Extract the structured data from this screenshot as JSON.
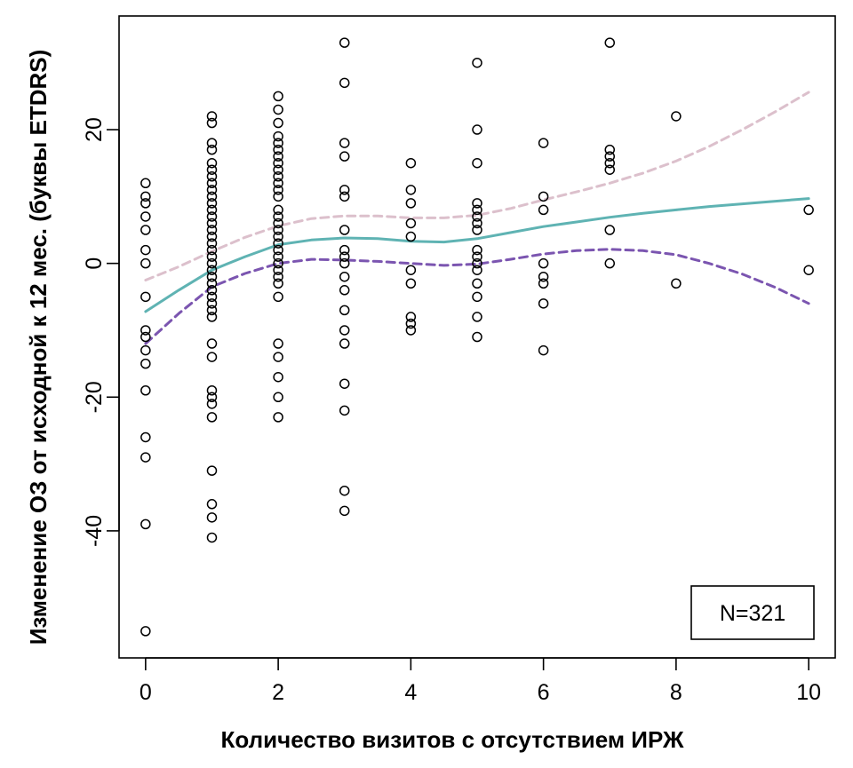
{
  "chart_data": {
    "type": "scatter",
    "title": "",
    "xlabel": "Количество визитов с отсутствием ИРЖ",
    "ylabel": "Изменение ОЗ от исходной к 12 мес. (буквы ETDRS)",
    "xlim": [
      -0.4,
      10.4
    ],
    "ylim": [
      -59,
      37
    ],
    "x_ticks": [
      0,
      2,
      4,
      6,
      8,
      10
    ],
    "y_ticks": [
      -40,
      -20,
      0,
      20
    ],
    "grid": false,
    "annotation": "N=321",
    "annotation_position": "bottom-right",
    "colors": {
      "points": "#000000",
      "fit": "#5fb3b3",
      "upper_ci": "#dcc0cc",
      "lower_ci": "#7b55b0"
    },
    "points": [
      {
        "x": 0,
        "y": 12
      },
      {
        "x": 0,
        "y": 10
      },
      {
        "x": 0,
        "y": 9
      },
      {
        "x": 0,
        "y": 7
      },
      {
        "x": 0,
        "y": 5
      },
      {
        "x": 0,
        "y": 2
      },
      {
        "x": 0,
        "y": 0
      },
      {
        "x": 0,
        "y": -5
      },
      {
        "x": 0,
        "y": -10
      },
      {
        "x": 0,
        "y": -11
      },
      {
        "x": 0,
        "y": -13
      },
      {
        "x": 0,
        "y": -15
      },
      {
        "x": 0,
        "y": -19
      },
      {
        "x": 0,
        "y": -26
      },
      {
        "x": 0,
        "y": -29
      },
      {
        "x": 0,
        "y": -39
      },
      {
        "x": 0,
        "y": -55
      },
      {
        "x": 1,
        "y": 22
      },
      {
        "x": 1,
        "y": 21
      },
      {
        "x": 1,
        "y": 18
      },
      {
        "x": 1,
        "y": 17
      },
      {
        "x": 1,
        "y": 15
      },
      {
        "x": 1,
        "y": 14
      },
      {
        "x": 1,
        "y": 13
      },
      {
        "x": 1,
        "y": 12
      },
      {
        "x": 1,
        "y": 11
      },
      {
        "x": 1,
        "y": 10
      },
      {
        "x": 1,
        "y": 9
      },
      {
        "x": 1,
        "y": 8
      },
      {
        "x": 1,
        "y": 7
      },
      {
        "x": 1,
        "y": 6
      },
      {
        "x": 1,
        "y": 5
      },
      {
        "x": 1,
        "y": 4
      },
      {
        "x": 1,
        "y": 3
      },
      {
        "x": 1,
        "y": 2
      },
      {
        "x": 1,
        "y": 1
      },
      {
        "x": 1,
        "y": 0
      },
      {
        "x": 1,
        "y": -1
      },
      {
        "x": 1,
        "y": -2
      },
      {
        "x": 1,
        "y": -3
      },
      {
        "x": 1,
        "y": -4
      },
      {
        "x": 1,
        "y": -5
      },
      {
        "x": 1,
        "y": -6
      },
      {
        "x": 1,
        "y": -7
      },
      {
        "x": 1,
        "y": -8
      },
      {
        "x": 1,
        "y": -12
      },
      {
        "x": 1,
        "y": -14
      },
      {
        "x": 1,
        "y": -19
      },
      {
        "x": 1,
        "y": -20
      },
      {
        "x": 1,
        "y": -21
      },
      {
        "x": 1,
        "y": -23
      },
      {
        "x": 1,
        "y": -31
      },
      {
        "x": 1,
        "y": -36
      },
      {
        "x": 1,
        "y": -38
      },
      {
        "x": 1,
        "y": -41
      },
      {
        "x": 2,
        "y": 25
      },
      {
        "x": 2,
        "y": 23
      },
      {
        "x": 2,
        "y": 21
      },
      {
        "x": 2,
        "y": 19
      },
      {
        "x": 2,
        "y": 18
      },
      {
        "x": 2,
        "y": 17
      },
      {
        "x": 2,
        "y": 16
      },
      {
        "x": 2,
        "y": 15
      },
      {
        "x": 2,
        "y": 14
      },
      {
        "x": 2,
        "y": 13
      },
      {
        "x": 2,
        "y": 12
      },
      {
        "x": 2,
        "y": 11
      },
      {
        "x": 2,
        "y": 10
      },
      {
        "x": 2,
        "y": 8
      },
      {
        "x": 2,
        "y": 7
      },
      {
        "x": 2,
        "y": 6
      },
      {
        "x": 2,
        "y": 5
      },
      {
        "x": 2,
        "y": 4
      },
      {
        "x": 2,
        "y": 3
      },
      {
        "x": 2,
        "y": 2
      },
      {
        "x": 2,
        "y": 1
      },
      {
        "x": 2,
        "y": 0
      },
      {
        "x": 2,
        "y": -1
      },
      {
        "x": 2,
        "y": -2
      },
      {
        "x": 2,
        "y": -3
      },
      {
        "x": 2,
        "y": -5
      },
      {
        "x": 2,
        "y": -12
      },
      {
        "x": 2,
        "y": -14
      },
      {
        "x": 2,
        "y": -17
      },
      {
        "x": 2,
        "y": -20
      },
      {
        "x": 2,
        "y": -23
      },
      {
        "x": 3,
        "y": 33
      },
      {
        "x": 3,
        "y": 27
      },
      {
        "x": 3,
        "y": 18
      },
      {
        "x": 3,
        "y": 16
      },
      {
        "x": 3,
        "y": 11
      },
      {
        "x": 3,
        "y": 10
      },
      {
        "x": 3,
        "y": 5
      },
      {
        "x": 3,
        "y": 2
      },
      {
        "x": 3,
        "y": 1
      },
      {
        "x": 3,
        "y": 0
      },
      {
        "x": 3,
        "y": -2
      },
      {
        "x": 3,
        "y": -4
      },
      {
        "x": 3,
        "y": -7
      },
      {
        "x": 3,
        "y": -10
      },
      {
        "x": 3,
        "y": -12
      },
      {
        "x": 3,
        "y": -18
      },
      {
        "x": 3,
        "y": -22
      },
      {
        "x": 3,
        "y": -34
      },
      {
        "x": 3,
        "y": -37
      },
      {
        "x": 4,
        "y": 15
      },
      {
        "x": 4,
        "y": 11
      },
      {
        "x": 4,
        "y": 9
      },
      {
        "x": 4,
        "y": 6
      },
      {
        "x": 4,
        "y": 4
      },
      {
        "x": 4,
        "y": -1
      },
      {
        "x": 4,
        "y": -3
      },
      {
        "x": 4,
        "y": -8
      },
      {
        "x": 4,
        "y": -9
      },
      {
        "x": 4,
        "y": -10
      },
      {
        "x": 5,
        "y": 30
      },
      {
        "x": 5,
        "y": 20
      },
      {
        "x": 5,
        "y": 15
      },
      {
        "x": 5,
        "y": 9
      },
      {
        "x": 5,
        "y": 8
      },
      {
        "x": 5,
        "y": 7
      },
      {
        "x": 5,
        "y": 6
      },
      {
        "x": 5,
        "y": 5
      },
      {
        "x": 5,
        "y": 2
      },
      {
        "x": 5,
        "y": 1
      },
      {
        "x": 5,
        "y": 0
      },
      {
        "x": 5,
        "y": -1
      },
      {
        "x": 5,
        "y": -3
      },
      {
        "x": 5,
        "y": -5
      },
      {
        "x": 5,
        "y": -8
      },
      {
        "x": 5,
        "y": -11
      },
      {
        "x": 6,
        "y": 18
      },
      {
        "x": 6,
        "y": 10
      },
      {
        "x": 6,
        "y": 8
      },
      {
        "x": 6,
        "y": 0
      },
      {
        "x": 6,
        "y": -2
      },
      {
        "x": 6,
        "y": -3
      },
      {
        "x": 6,
        "y": -6
      },
      {
        "x": 6,
        "y": -13
      },
      {
        "x": 7,
        "y": 33
      },
      {
        "x": 7,
        "y": 17
      },
      {
        "x": 7,
        "y": 16
      },
      {
        "x": 7,
        "y": 15
      },
      {
        "x": 7,
        "y": 14
      },
      {
        "x": 7,
        "y": 5
      },
      {
        "x": 7,
        "y": 0
      },
      {
        "x": 8,
        "y": 22
      },
      {
        "x": 8,
        "y": -3
      },
      {
        "x": 10,
        "y": 8
      },
      {
        "x": 10,
        "y": -1
      }
    ],
    "series": [
      {
        "style": "solid",
        "x": [
          0,
          0.5,
          1,
          1.5,
          2,
          2.5,
          3,
          3.5,
          4,
          4.5,
          5,
          5.5,
          6,
          6.5,
          7,
          7.5,
          8,
          8.5,
          9,
          9.5,
          10
        ],
        "y": [
          -7.2,
          -4.0,
          -1.0,
          1.0,
          2.8,
          3.5,
          3.8,
          3.7,
          3.3,
          3.2,
          3.7,
          4.6,
          5.5,
          6.2,
          6.9,
          7.5,
          8.0,
          8.5,
          8.9,
          9.3,
          9.7
        ]
      },
      {
        "style": "dashed",
        "x": [
          0,
          0.5,
          1,
          1.5,
          2,
          2.5,
          3,
          3.5,
          4,
          4.5,
          5,
          5.5,
          6,
          6.5,
          7,
          7.5,
          8,
          8.5,
          9,
          9.5,
          10
        ],
        "y": [
          -2.5,
          -0.5,
          1.8,
          3.9,
          5.6,
          6.7,
          7.1,
          7.1,
          6.8,
          6.8,
          7.2,
          8.2,
          9.5,
          10.7,
          12.0,
          13.5,
          15.3,
          17.5,
          20.0,
          22.7,
          25.6
        ]
      },
      {
        "style": "dashed",
        "x": [
          0,
          0.5,
          1,
          1.5,
          2,
          2.5,
          3,
          3.5,
          4,
          4.5,
          5,
          5.5,
          6,
          6.5,
          7,
          7.5,
          8,
          8.5,
          9,
          9.5,
          10
        ],
        "y": [
          -12.0,
          -7.5,
          -3.5,
          -1.5,
          0.0,
          0.6,
          0.5,
          0.3,
          0.0,
          -0.3,
          -0.1,
          0.6,
          1.4,
          1.9,
          2.1,
          1.9,
          1.3,
          0.0,
          -1.6,
          -3.6,
          -6.0
        ]
      }
    ]
  }
}
